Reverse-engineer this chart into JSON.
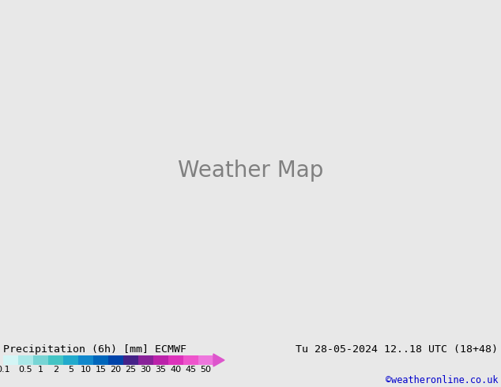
{
  "title_left": "Precipitation (6h) [mm] ECMWF",
  "title_right": "Tu 28-05-2024 12..18 UTC (18+48)",
  "credit": "©weatheronline.co.uk",
  "colorbar_levels": [
    "0.1",
    "0.5",
    "1",
    "2",
    "5",
    "10",
    "15",
    "20",
    "25",
    "30",
    "35",
    "40",
    "45",
    "50"
  ],
  "colorbar_colors": [
    "#d4f5f5",
    "#aae8e8",
    "#77d4d4",
    "#44c4c4",
    "#22aacc",
    "#1188cc",
    "#0066bb",
    "#0044aa",
    "#442288",
    "#882299",
    "#bb22aa",
    "#dd33bb",
    "#ee55cc",
    "#ee77dd"
  ],
  "arrow_color": "#dd55cc",
  "bg_color": "#e8e8e8",
  "label_fontsize": 9.5,
  "credit_fontsize": 8.5,
  "credit_color": "#0000cc",
  "tick_fontsize": 8.0,
  "fig_width": 6.34,
  "fig_height": 4.9,
  "dpi": 100
}
